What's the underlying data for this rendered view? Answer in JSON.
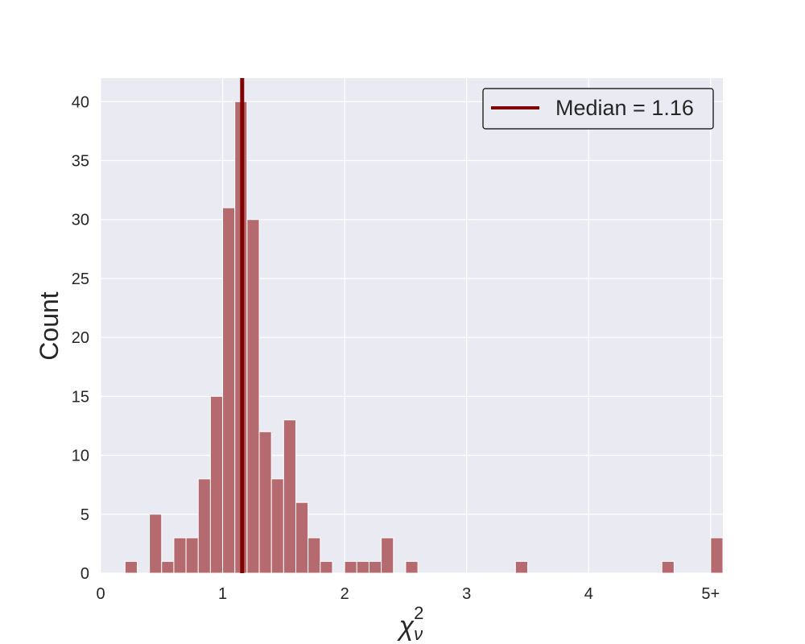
{
  "chart_data": {
    "type": "bar",
    "bin_width": 0.1,
    "bins": [
      {
        "x_start": 0.2,
        "count": 1
      },
      {
        "x_start": 0.3,
        "count": 0
      },
      {
        "x_start": 0.4,
        "count": 5
      },
      {
        "x_start": 0.5,
        "count": 1
      },
      {
        "x_start": 0.6,
        "count": 3
      },
      {
        "x_start": 0.7,
        "count": 3
      },
      {
        "x_start": 0.8,
        "count": 8
      },
      {
        "x_start": 0.9,
        "count": 15
      },
      {
        "x_start": 1.0,
        "count": 31
      },
      {
        "x_start": 1.1,
        "count": 40
      },
      {
        "x_start": 1.2,
        "count": 30
      },
      {
        "x_start": 1.3,
        "count": 12
      },
      {
        "x_start": 1.4,
        "count": 8
      },
      {
        "x_start": 1.5,
        "count": 13
      },
      {
        "x_start": 1.6,
        "count": 6
      },
      {
        "x_start": 1.7,
        "count": 3
      },
      {
        "x_start": 1.8,
        "count": 1
      },
      {
        "x_start": 2.0,
        "count": 1
      },
      {
        "x_start": 2.1,
        "count": 1
      },
      {
        "x_start": 2.2,
        "count": 1
      },
      {
        "x_start": 2.3,
        "count": 3
      },
      {
        "x_start": 2.5,
        "count": 1
      },
      {
        "x_start": 3.4,
        "count": 1
      },
      {
        "x_start": 4.6,
        "count": 1
      },
      {
        "x_start": 5.0,
        "count": 3
      }
    ],
    "median": 1.16,
    "legend_label": "Median = 1.16",
    "legend_position": "top-right",
    "xlabel": "χ",
    "xlabel_sub": "ν",
    "xlabel_sup": "2",
    "ylabel": "Count",
    "xlim": [
      0,
      5.1
    ],
    "ylim": [
      0,
      42
    ],
    "x_ticks": [
      {
        "value": 0,
        "label": "0"
      },
      {
        "value": 1,
        "label": "1"
      },
      {
        "value": 2,
        "label": "2"
      },
      {
        "value": 3,
        "label": "3"
      },
      {
        "value": 4,
        "label": "4"
      },
      {
        "value": 5,
        "label": "5+"
      }
    ],
    "y_ticks": [
      {
        "value": 0,
        "label": "0"
      },
      {
        "value": 5,
        "label": "5"
      },
      {
        "value": 10,
        "label": "10"
      },
      {
        "value": 15,
        "label": "15"
      },
      {
        "value": 20,
        "label": "20"
      },
      {
        "value": 25,
        "label": "25"
      },
      {
        "value": 30,
        "label": "30"
      },
      {
        "value": 35,
        "label": "35"
      },
      {
        "value": 40,
        "label": "40"
      }
    ],
    "grid": true,
    "colors": {
      "bar_fill": "#b46a6e",
      "bar_edge": "#ffffff",
      "median_line": "#800000",
      "plot_background": "#eaeaf2",
      "grid": "#ffffff"
    }
  }
}
